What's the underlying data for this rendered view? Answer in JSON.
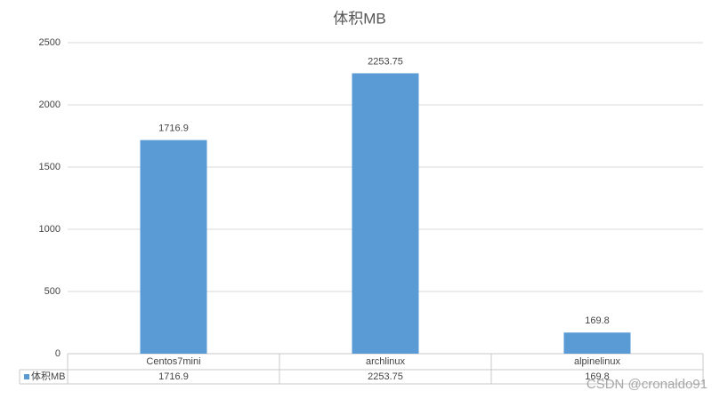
{
  "chart_data": {
    "type": "bar",
    "title": "体积MB",
    "categories": [
      "Centos7mini",
      "archlinux",
      "alpinelinux"
    ],
    "series": [
      {
        "name": "体积MB",
        "color": "#5b9bd5",
        "values": [
          1716.9,
          2253.75,
          169.8
        ]
      }
    ],
    "ylim": [
      0,
      2500
    ],
    "yticks": [
      0,
      500,
      1000,
      1500,
      2000,
      2500
    ],
    "grid": true,
    "data_table": true
  },
  "watermark": "CSDN @cronaldo91"
}
